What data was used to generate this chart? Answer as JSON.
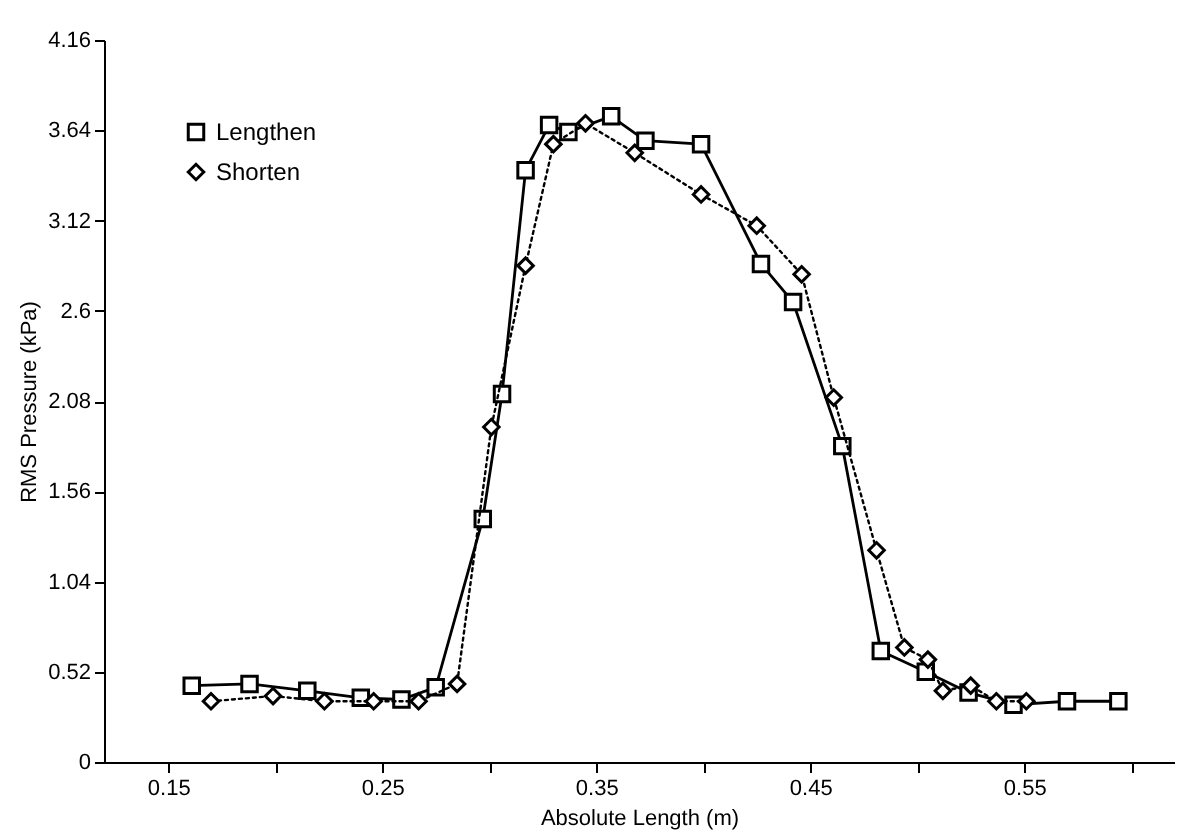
{
  "chart_data": {
    "type": "line",
    "xlabel": "Absolute Length (m)",
    "ylabel": "RMS Pressure (kPa)",
    "xlim": [
      0.12,
      0.62
    ],
    "ylim": [
      0,
      4.16
    ],
    "xticks": [
      0.15,
      {
        "value": 0.2,
        "label": null
      },
      0.25,
      {
        "value": 0.3,
        "label": null
      },
      0.35,
      {
        "value": 0.4,
        "label": null
      },
      0.45,
      {
        "value": 0.5,
        "label": null
      },
      0.55,
      {
        "value": 0.6,
        "label": null
      }
    ],
    "yticks": [
      0,
      0.52,
      1.04,
      1.56,
      2.08,
      2.6,
      3.12,
      3.64,
      4.16
    ],
    "grid": false,
    "legend": "top left",
    "series": [
      {
        "name": "Lengthen",
        "color": "#000000",
        "marker": "square",
        "line_style": "solid",
        "x": [
          0.161,
          0.188,
          0.215,
          0.24,
          0.259,
          0.275,
          0.297,
          0.306,
          0.317,
          0.328,
          0.337,
          0.357,
          0.373,
          0.399,
          0.427,
          0.442,
          0.465,
          0.483,
          0.504,
          0.524,
          0.545,
          0.57,
          0.594
        ],
        "values": [
          0.44,
          0.45,
          0.41,
          0.37,
          0.36,
          0.43,
          1.4,
          2.12,
          3.41,
          3.67,
          3.63,
          3.72,
          3.58,
          3.56,
          2.87,
          2.65,
          1.82,
          0.64,
          0.52,
          0.4,
          0.33,
          0.35,
          0.35
        ]
      },
      {
        "name": "Shorten",
        "color": "#000000",
        "marker": "diamond",
        "line_style": "dotted",
        "x": [
          0.17,
          0.199,
          0.223,
          0.246,
          0.267,
          0.285,
          0.301,
          0.317,
          0.33,
          0.345,
          0.368,
          0.399,
          0.425,
          0.446,
          0.461,
          0.481,
          0.494,
          0.505,
          0.512,
          0.525,
          0.537,
          0.551
        ],
        "values": [
          0.35,
          0.38,
          0.35,
          0.35,
          0.35,
          0.45,
          1.93,
          2.86,
          3.56,
          3.68,
          3.51,
          3.27,
          3.09,
          2.81,
          2.1,
          1.22,
          0.66,
          0.59,
          0.41,
          0.44,
          0.35,
          0.35
        ]
      }
    ]
  }
}
